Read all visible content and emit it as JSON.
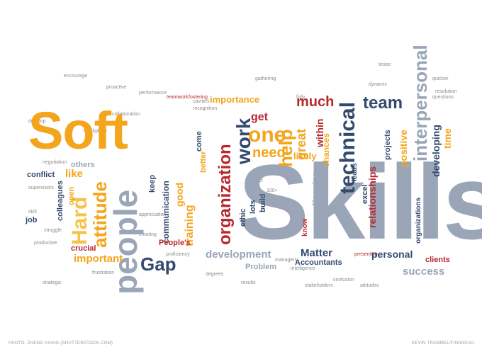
{
  "cloud": {
    "soft": "Soft",
    "skills": "Skills",
    "people": "people",
    "hard": "Hard",
    "attitude": "attitude",
    "gap": "Gap",
    "organization": "organization",
    "work": "work",
    "technical": "technical",
    "team": "team",
    "interpersonal": "interpersonal",
    "one": "one",
    "need": "need",
    "much": "much",
    "great": "great",
    "help": "help",
    "get": "get",
    "within": "within",
    "chances": "chances",
    "likely": "likely",
    "positive": "positive",
    "developing": "developing",
    "time": "time",
    "relationships": "relationships",
    "development": "development",
    "matter": "Matter",
    "personal": "personal",
    "success": "success",
    "clients": "clients",
    "accountants": "Accountants",
    "problem": "Problem",
    "important": "important",
    "crucial": "crucial",
    "training": "training",
    "communication": "communication",
    "good": "good",
    "better": "better",
    "importance": "importance",
    "like": "like",
    "others": "others",
    "conflict": "conflict",
    "colleagues": "colleagues",
    "open": "open",
    "job": "job",
    "keep": "keep",
    "ethic": "ethic",
    "lots": "lots",
    "build": "build",
    "peoples": "People's",
    "excel": "excel",
    "organizations": "organizations",
    "leads": "leads",
    "know": "know",
    "knowing": "Knowing",
    "projects": "projects",
    "come": "come",
    "teamwork": "teamwork",
    "collaboration": "collaboration",
    "fostering": "fostering",
    "frustration": "frustration",
    "struggle": "struggle",
    "presenting": "presenting",
    "tester": "tester"
  },
  "credits": {
    "left": "PHOTO: ZHENG XIANG (SHUTTERSTOCK.COM)",
    "right": "KEVIN TRAMMEL/FINANCIAL"
  }
}
